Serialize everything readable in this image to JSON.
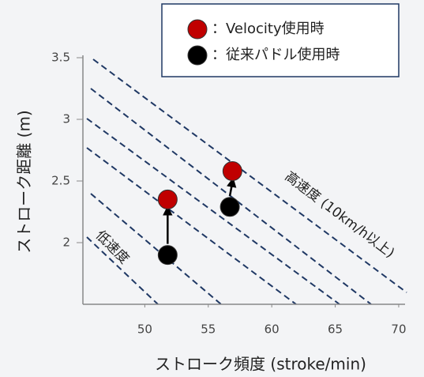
{
  "chart_data": {
    "type": "scatter",
    "xlabel": "ストローク頻度 (stroke/min)",
    "ylabel": "ストローク距離 (m)",
    "xlim": [
      45,
      70.5
    ],
    "ylim": [
      1.5,
      3.5
    ],
    "xticks": [
      50,
      55,
      60,
      65,
      70
    ],
    "yticks": [
      2,
      2.5,
      3,
      3.5
    ],
    "series": [
      {
        "name": "：Velocity使用時",
        "color": "#c00000",
        "x": [
          51.8,
          56.9
        ],
        "values": [
          2.35,
          2.58
        ]
      },
      {
        "name": "：従来パドル使用時",
        "color": "#000000",
        "x": [
          51.8,
          56.7
        ],
        "values": [
          1.9,
          2.29
        ]
      }
    ],
    "annotations": [
      "高速度 (10km/h以上)",
      "低速度"
    ],
    "legend": "top-right"
  }
}
